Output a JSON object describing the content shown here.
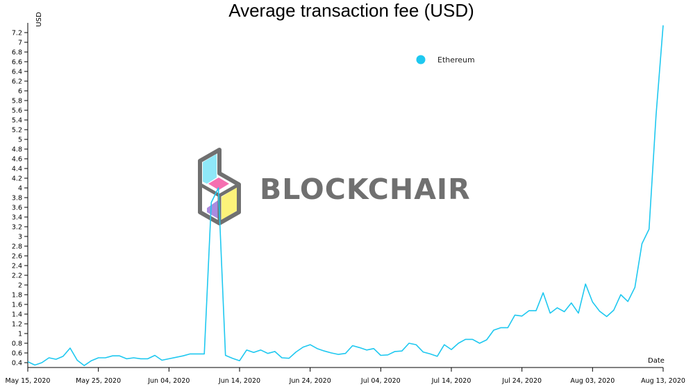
{
  "chart_data": {
    "type": "line",
    "title": "Average transaction fee (USD)",
    "ylabel": "USD",
    "xlabel": "Date",
    "ylim": [
      0.3,
      7.4
    ],
    "xlim": [
      "2020-05-15",
      "2020-08-13"
    ],
    "yticks": [
      0.4,
      0.6,
      0.8,
      1,
      1.2,
      1.4,
      1.6,
      1.8,
      2,
      2.2,
      2.4,
      2.6,
      2.8,
      3,
      3.2,
      3.4,
      3.6,
      3.8,
      4,
      4.2,
      4.4,
      4.6,
      4.8,
      5,
      5.2,
      5.4,
      5.6,
      5.8,
      6,
      6.2,
      6.4,
      6.6,
      6.8,
      7,
      7.2
    ],
    "xticks": [
      {
        "date": "2020-05-15",
        "label": "May 15, 2020"
      },
      {
        "date": "2020-05-25",
        "label": "May 25, 2020"
      },
      {
        "date": "2020-06-04",
        "label": "Jun 04, 2020"
      },
      {
        "date": "2020-06-14",
        "label": "Jun 14, 2020"
      },
      {
        "date": "2020-06-24",
        "label": "Jun 24, 2020"
      },
      {
        "date": "2020-07-04",
        "label": "Jul 04, 2020"
      },
      {
        "date": "2020-07-14",
        "label": "Jul 14, 2020"
      },
      {
        "date": "2020-07-24",
        "label": "Jul 24, 2020"
      },
      {
        "date": "2020-08-03",
        "label": "Aug 03, 2020"
      },
      {
        "date": "2020-08-13",
        "label": "Aug 13, 2020"
      }
    ],
    "legend_position": "top-right",
    "grid": false,
    "series": [
      {
        "name": "Ethereum",
        "color": "#1ec8f0",
        "x": [
          "2020-05-15",
          "2020-05-16",
          "2020-05-17",
          "2020-05-18",
          "2020-05-19",
          "2020-05-20",
          "2020-05-21",
          "2020-05-22",
          "2020-05-23",
          "2020-05-24",
          "2020-05-25",
          "2020-05-26",
          "2020-05-27",
          "2020-05-28",
          "2020-05-29",
          "2020-05-30",
          "2020-05-31",
          "2020-06-01",
          "2020-06-02",
          "2020-06-03",
          "2020-06-04",
          "2020-06-05",
          "2020-06-06",
          "2020-06-07",
          "2020-06-08",
          "2020-06-09",
          "2020-06-10",
          "2020-06-11",
          "2020-06-12",
          "2020-06-13",
          "2020-06-14",
          "2020-06-15",
          "2020-06-16",
          "2020-06-17",
          "2020-06-18",
          "2020-06-19",
          "2020-06-20",
          "2020-06-21",
          "2020-06-22",
          "2020-06-23",
          "2020-06-24",
          "2020-06-25",
          "2020-06-26",
          "2020-06-27",
          "2020-06-28",
          "2020-06-29",
          "2020-06-30",
          "2020-07-01",
          "2020-07-02",
          "2020-07-03",
          "2020-07-04",
          "2020-07-05",
          "2020-07-06",
          "2020-07-07",
          "2020-07-08",
          "2020-07-09",
          "2020-07-10",
          "2020-07-11",
          "2020-07-12",
          "2020-07-13",
          "2020-07-14",
          "2020-07-15",
          "2020-07-16",
          "2020-07-17",
          "2020-07-18",
          "2020-07-19",
          "2020-07-20",
          "2020-07-21",
          "2020-07-22",
          "2020-07-23",
          "2020-07-24",
          "2020-07-25",
          "2020-07-26",
          "2020-07-27",
          "2020-07-28",
          "2020-07-29",
          "2020-07-30",
          "2020-07-31",
          "2020-08-01",
          "2020-08-02",
          "2020-08-03",
          "2020-08-04",
          "2020-08-05",
          "2020-08-06",
          "2020-08-07",
          "2020-08-08",
          "2020-08-09",
          "2020-08-10",
          "2020-08-11",
          "2020-08-12",
          "2020-08-13"
        ],
        "values": [
          0.42,
          0.35,
          0.4,
          0.5,
          0.47,
          0.53,
          0.7,
          0.45,
          0.34,
          0.44,
          0.5,
          0.5,
          0.54,
          0.54,
          0.48,
          0.5,
          0.48,
          0.48,
          0.55,
          0.45,
          0.48,
          0.51,
          0.54,
          0.58,
          0.58,
          0.58,
          3.7,
          4.0,
          0.55,
          0.49,
          0.44,
          0.66,
          0.61,
          0.66,
          0.59,
          0.63,
          0.5,
          0.49,
          0.62,
          0.72,
          0.77,
          0.69,
          0.64,
          0.6,
          0.57,
          0.59,
          0.75,
          0.71,
          0.66,
          0.69,
          0.55,
          0.56,
          0.63,
          0.64,
          0.8,
          0.77,
          0.62,
          0.58,
          0.53,
          0.77,
          0.67,
          0.8,
          0.88,
          0.88,
          0.8,
          0.87,
          1.07,
          1.12,
          1.12,
          1.38,
          1.36,
          1.47,
          1.47,
          1.84,
          1.42,
          1.53,
          1.45,
          1.63,
          1.42,
          2.02,
          1.65,
          1.46,
          1.35,
          1.48,
          1.8,
          1.66,
          1.95,
          2.85,
          3.15,
          5.5,
          7.35
        ]
      }
    ]
  },
  "watermark": {
    "text": "BLOCKCHAIR",
    "colors": {
      "outline": "#707070",
      "cyan": "#8fe8f8",
      "pink": "#f56fb0",
      "purple": "#a98be0",
      "yellow": "#fcf27a"
    }
  }
}
